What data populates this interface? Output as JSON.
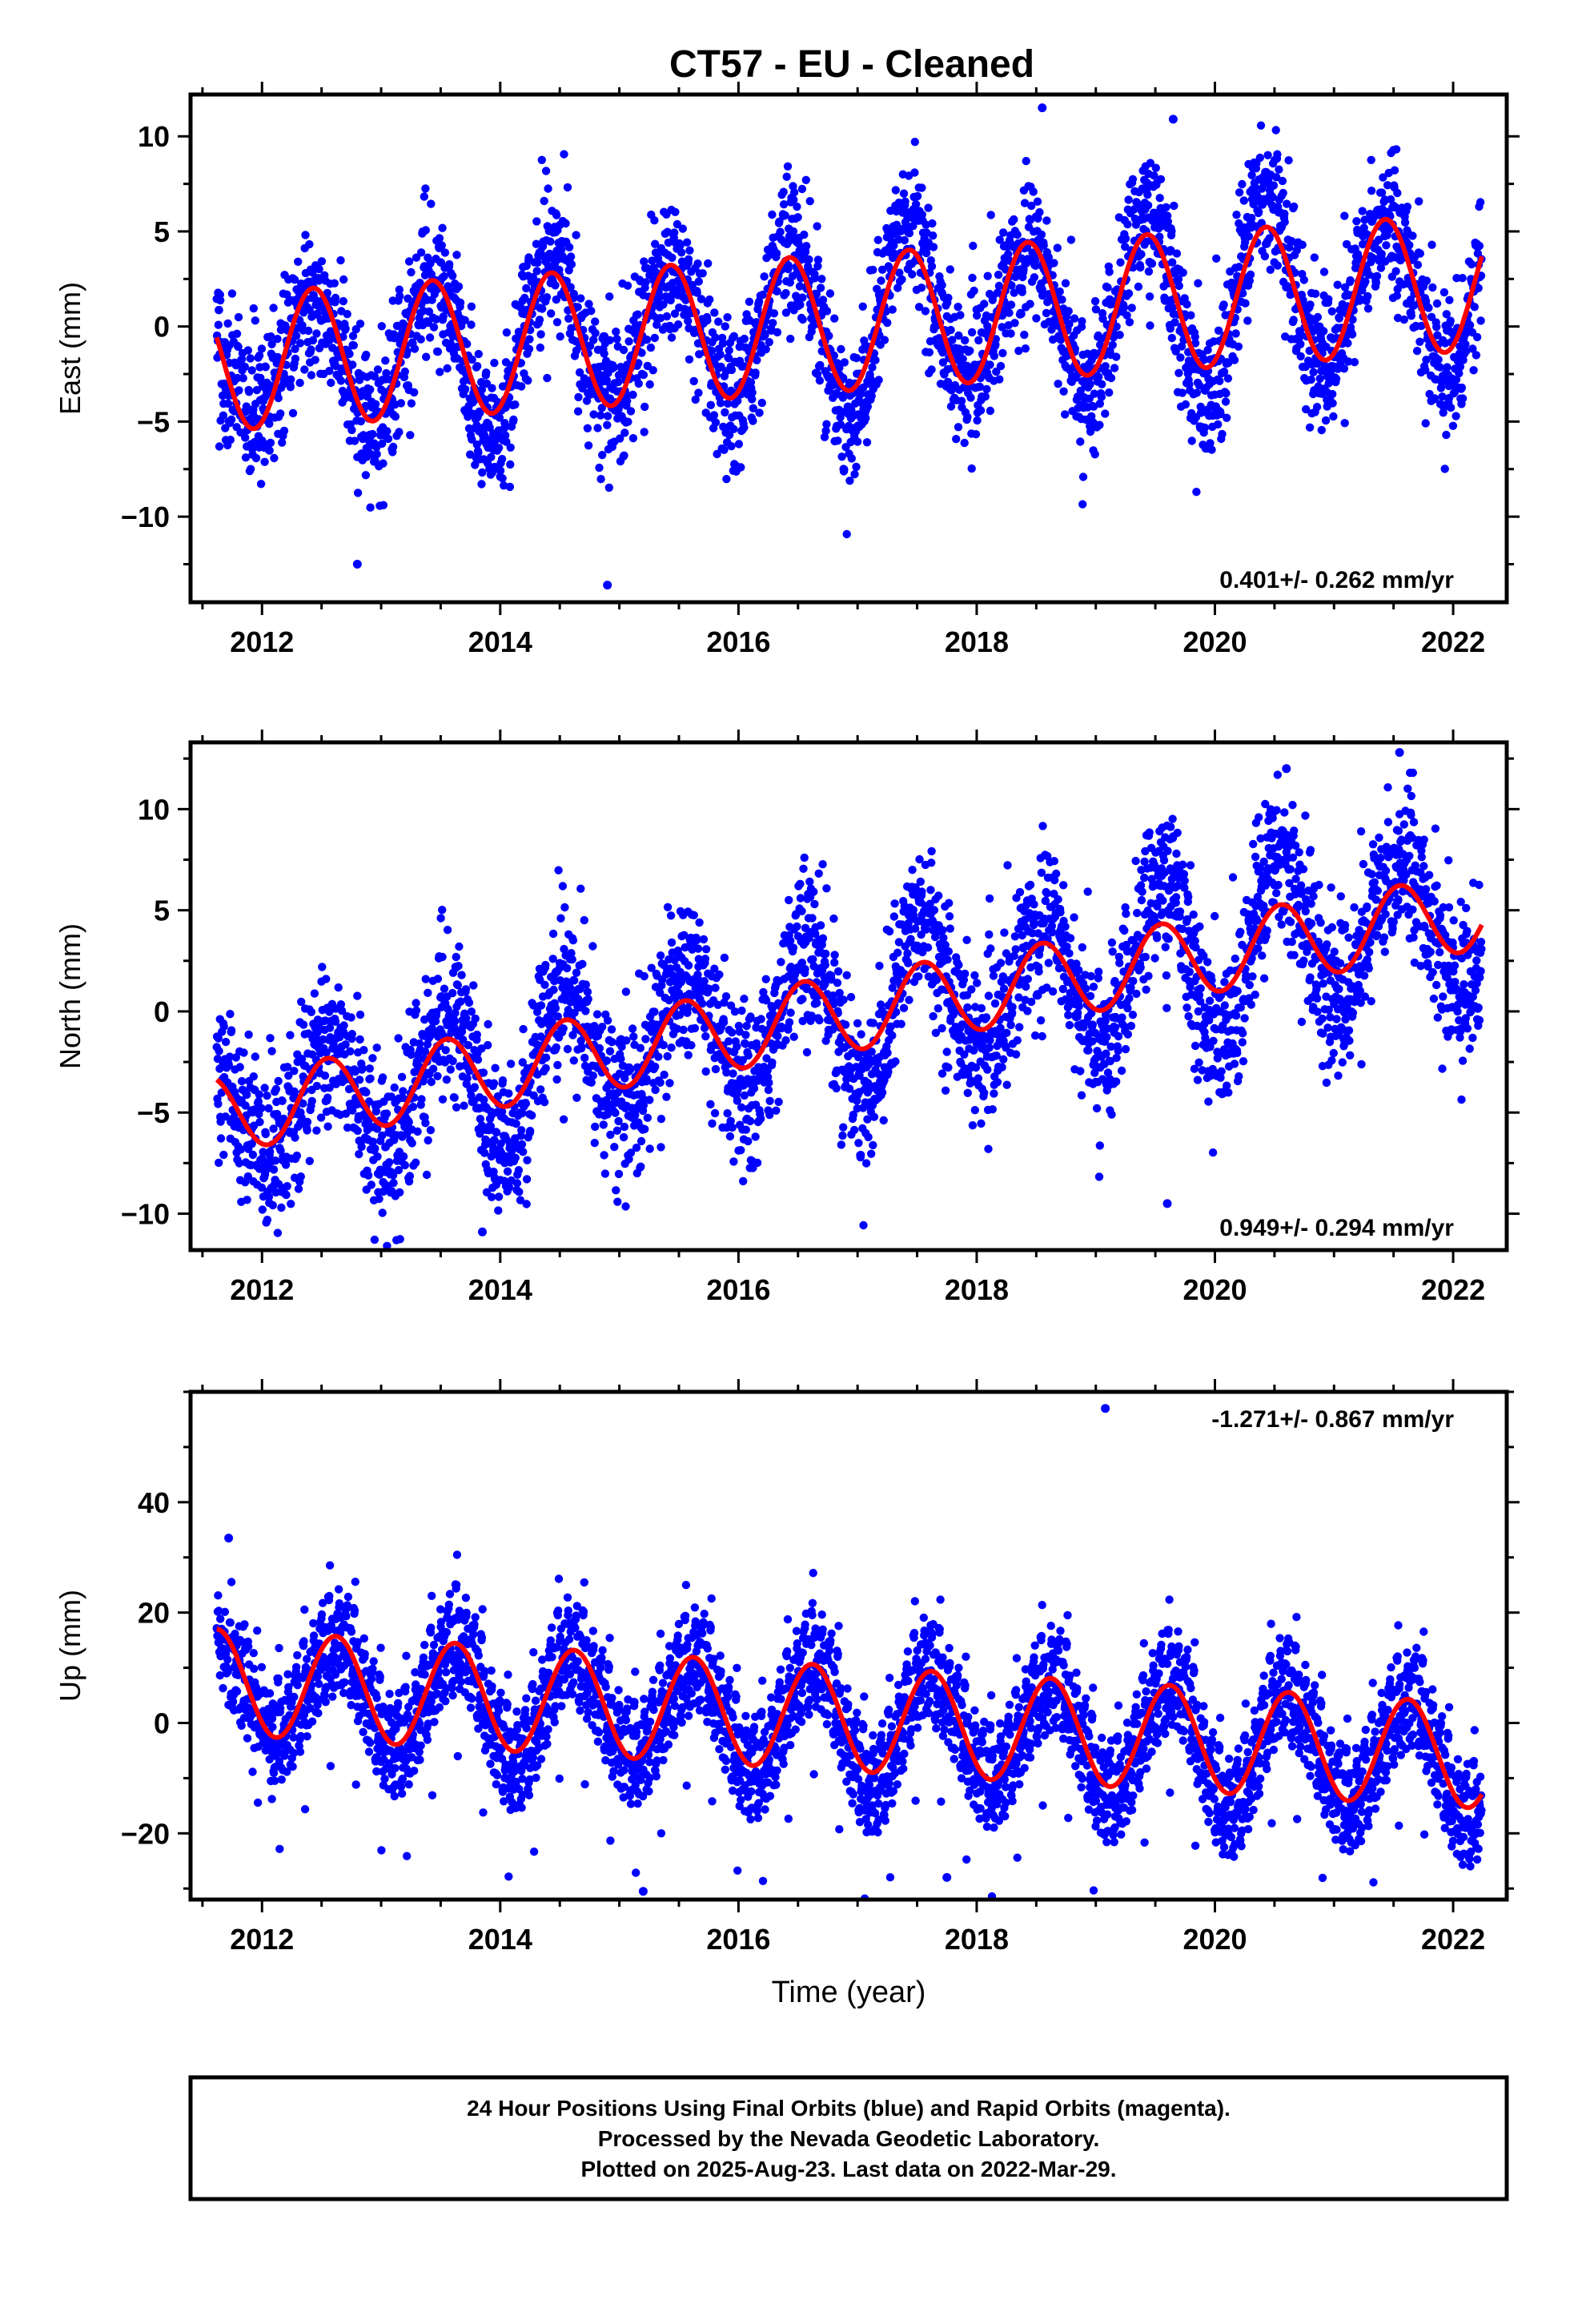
{
  "title": "CT57  - EU - Cleaned",
  "colors": {
    "points": "#0000ff",
    "fit": "#ff0000",
    "frame": "#000000"
  },
  "footer": {
    "line1": "24 Hour Positions Using Final Orbits (blue) and Rapid Orbits (magenta).",
    "line2": "Processed by the Nevada Geodetic Laboratory.",
    "line3": "Plotted on 2025-Aug-23. Last data on 2022-Mar-29."
  },
  "chart_data": [
    {
      "type": "scatter",
      "name": "east",
      "ylabel": "East (mm)",
      "xlabel": "",
      "xlim": [
        2011.4,
        2022.45
      ],
      "ylim": [
        -14.5,
        12.2
      ],
      "xticks": [
        2012,
        2014,
        2016,
        2018,
        2020,
        2022
      ],
      "yticks": [
        -10,
        -5,
        0,
        5,
        10
      ],
      "rate_label": "0.401+/- 0.262 mm/yr",
      "rate_position": "bottom-right",
      "fit": {
        "intercept": -1.9,
        "rate": 0.401,
        "amplitude": 3.6,
        "peak_phase": 0.43,
        "start": 2011.62,
        "end": 2022.24
      },
      "data": {
        "start": 2011.62,
        "end": 2022.24,
        "scatter_sd": 1.8,
        "amp_range": [
          2.8,
          5.5
        ],
        "outliers": [
          [
            2012.8,
            -12.5
          ],
          [
            2014.9,
            -13.6
          ],
          [
            2018.55,
            11.5
          ],
          [
            2019.65,
            10.9
          ]
        ]
      }
    },
    {
      "type": "scatter",
      "name": "north",
      "ylabel": "North (mm)",
      "xlabel": "",
      "xlim": [
        2011.4,
        2022.45
      ],
      "ylim": [
        -11.8,
        13.3
      ],
      "xticks": [
        2012,
        2014,
        2016,
        2018,
        2020,
        2022
      ],
      "yticks": [
        -10,
        -5,
        0,
        5,
        10
      ],
      "rate_label": "0.949+/- 0.294 mm/yr",
      "rate_position": "bottom-right",
      "fit": {
        "intercept": -5.1,
        "rate": 0.949,
        "amplitude": 1.9,
        "peak_phase": 0.55,
        "start": 2011.62,
        "end": 2022.24
      },
      "data": {
        "start": 2011.62,
        "end": 2022.24,
        "scatter_sd": 1.9,
        "amp_range": [
          2.5,
          4.5
        ],
        "outliers": [
          [
            2019.6,
            -9.5
          ],
          [
            2021.55,
            12.8
          ],
          [
            2020.6,
            12.0
          ],
          [
            2013.85,
            -10.9
          ]
        ]
      }
    },
    {
      "type": "scatter",
      "name": "up",
      "ylabel": "Up (mm)",
      "xlabel": "Time (year)",
      "xlim": [
        2011.4,
        2022.45
      ],
      "ylim": [
        -32,
        60
      ],
      "xticks": [
        2012,
        2014,
        2016,
        2018,
        2020,
        2022
      ],
      "yticks": [
        -20,
        0,
        20,
        40
      ],
      "rate_label": "-1.271+/- 0.867 mm/yr",
      "rate_position": "top-right",
      "fit": {
        "intercept": 7.5,
        "rate": -1.271,
        "amplitude": 9.5,
        "peak_phase": 0.62,
        "start": 2011.62,
        "end": 2022.24
      },
      "data": {
        "start": 2011.62,
        "end": 2022.24,
        "scatter_sd": 5.5,
        "amp_range": [
          8,
          12
        ],
        "outliers": [
          [
            2019.08,
            57.0
          ],
          [
            2011.72,
            33.5
          ],
          [
            2015.2,
            -30.5
          ],
          [
            2017.75,
            -28.0
          ]
        ]
      }
    }
  ]
}
